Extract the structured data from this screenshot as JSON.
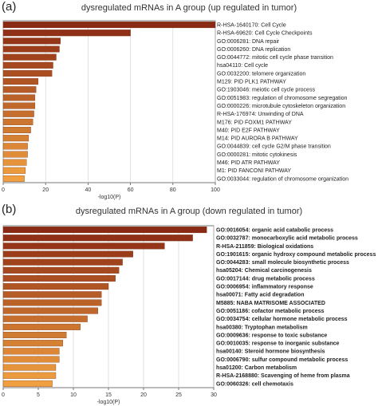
{
  "chart_data": [
    {
      "type": "bar",
      "orientation": "horizontal",
      "panel_letter": "(a)",
      "title": "dysregulated mRNAs in A group (up regulated in tumor)",
      "xlabel": "-log10(P)",
      "ylabel": "",
      "xlim": [
        0,
        100
      ],
      "xticks": [
        0,
        20,
        40,
        60,
        80,
        100
      ],
      "grid": "vertical gridlines",
      "categories": [
        "R-HSA-1640170: Cell Cycle",
        "R-HSA-69620: Cell Cycle Checkpoints",
        "GO:0006281: DNA repair",
        "GO:0006260: DNA replication",
        "GO:0044772: mitotic cell cycle phase transition",
        "hsa04110: Cell cycle",
        "GO:0032200: telomere organization",
        "M129: PID PLK1 PATHWAY",
        "GO:1903046: meiotic cell cycle process",
        "GO:0051983: regulation of chromosome segregation",
        "GO:0000226: microtubule cytoskeleton organization",
        "R-HSA-176974: Unwinding of DNA",
        "M176: PID FOXM1 PATHWAY",
        "M40: PID E2F PATHWAY",
        "M14: PID AURORA B PATHWAY",
        "GO:0044839: cell cycle G2/M phase transition",
        "GO:0000281: mitotic cytokinesis",
        "M46: PID ATR PATHWAY",
        "M1: PID FANCONI PATHWAY",
        "GO:0033044: regulation of chromosome organization"
      ],
      "values": [
        100,
        60,
        27,
        26.5,
        25,
        23.5,
        23,
        16.5,
        15.5,
        15,
        15,
        14.5,
        14,
        13,
        12,
        11.5,
        11.5,
        11,
        10.5,
        10
      ],
      "colors": {
        "dark": "#8b2a14",
        "light": "#f0a040"
      }
    },
    {
      "type": "bar",
      "orientation": "horizontal",
      "panel_letter": "(b)",
      "title": "dysregulated mRNAs in A group (down regulated in tumor)",
      "xlabel": "-log10(P)",
      "ylabel": "",
      "xlim": [
        0,
        30
      ],
      "xticks": [
        0,
        5,
        10,
        15,
        20,
        25,
        30
      ],
      "grid": "vertical gridlines",
      "categories": [
        "GO:0016054: organic acid catabolic process",
        "GO:0032787: monocarboxylic acid metabolic process",
        "R-HSA-211859: Biological oxidations",
        "GO:1901615: organic hydroxy compound metabolic process",
        "GO:0044283: small molecule biosynthetic process",
        "hsa05204: Chemical carcinogenesis",
        "GO:0017144: drug metabolic process",
        "GO:0006954: inflammatory response",
        "hsa00071: Fatty acid degradation",
        "M5885: NABA MATRISOME ASSOCIATED",
        "GO:0051186: cofactor metabolic process",
        "GO:0034754: cellular hormone metabolic process",
        "hsa00380: Tryptophan metabolism",
        "GO:0009636: response to toxic substance",
        "GO:0010035: response to inorganic substance",
        "hsa00140: Steroid hormone biosynthesis",
        "GO:0006790: sulfur compound metabolic process",
        "hsa01200: Carbon metabolism",
        "R-HSA-2168880: Scavenging of heme from plasma",
        "GO:0060326: cell chemotaxis"
      ],
      "values": [
        29,
        27,
        23,
        18.5,
        17,
        16.5,
        16,
        15,
        14,
        14,
        13.5,
        12,
        11,
        9,
        8.5,
        8,
        8,
        7.5,
        7.5,
        7
      ],
      "colors": {
        "dark": "#8b2a14",
        "light": "#f0a040"
      }
    }
  ]
}
